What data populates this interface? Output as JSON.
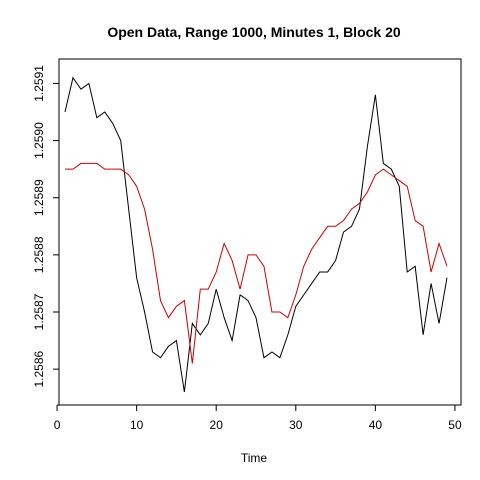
{
  "chart_data": {
    "type": "line",
    "title": "Open Data, Range 1000, Minutes 1, Block 20",
    "xlabel": "Time",
    "ylabel": "",
    "xlim": [
      1,
      49
    ],
    "ylim": [
      1.25856,
      1.25912
    ],
    "x_ticks": [
      0,
      10,
      20,
      30,
      40,
      50
    ],
    "y_ticks": [
      1.2586,
      1.2587,
      1.2588,
      1.2589,
      1.259,
      1.2591
    ],
    "y_tick_labels": [
      "1.2586",
      "1.2587",
      "1.2588",
      "1.2589",
      "1.2590",
      "1.2591"
    ],
    "grid": false,
    "legend": "none",
    "x": [
      1,
      2,
      3,
      4,
      5,
      6,
      7,
      8,
      9,
      10,
      11,
      12,
      13,
      14,
      15,
      16,
      17,
      18,
      19,
      20,
      21,
      22,
      23,
      24,
      25,
      26,
      27,
      28,
      29,
      30,
      31,
      32,
      33,
      34,
      35,
      36,
      37,
      38,
      39,
      40,
      41,
      42,
      43,
      44,
      45,
      46,
      47,
      48,
      49
    ],
    "series": [
      {
        "color": "#000000",
        "values": [
          1.25905,
          1.25911,
          1.25909,
          1.2591,
          1.25904,
          1.25905,
          1.25903,
          1.259,
          1.25888,
          1.25876,
          1.2587,
          1.25863,
          1.25862,
          1.25864,
          1.25865,
          1.25856,
          1.25868,
          1.25866,
          1.25868,
          1.25874,
          1.25869,
          1.25865,
          1.25873,
          1.25872,
          1.25869,
          1.25862,
          1.25863,
          1.25862,
          1.25866,
          1.25871,
          1.25873,
          1.25875,
          1.25877,
          1.25877,
          1.25879,
          1.25884,
          1.25885,
          1.25888,
          1.25899,
          1.25908,
          1.25896,
          1.25895,
          1.25892,
          1.25877,
          1.25878,
          1.25866,
          1.25875,
          1.25868,
          1.25876
        ]
      },
      {
        "color": "#cc0000",
        "values": [
          1.25895,
          1.25895,
          1.25896,
          1.25896,
          1.25896,
          1.25895,
          1.25895,
          1.25895,
          1.25894,
          1.25892,
          1.25888,
          1.25881,
          1.25872,
          1.25869,
          1.25871,
          1.25872,
          1.25861,
          1.25874,
          1.25874,
          1.25877,
          1.25882,
          1.25879,
          1.25874,
          1.2588,
          1.2588,
          1.25878,
          1.2587,
          1.2587,
          1.25869,
          1.25873,
          1.25878,
          1.25881,
          1.25883,
          1.25885,
          1.25885,
          1.25886,
          1.25888,
          1.25889,
          1.25891,
          1.25894,
          1.25895,
          1.25894,
          1.25893,
          1.25892,
          1.25886,
          1.25885,
          1.25877,
          1.25882,
          1.25878
        ]
      }
    ]
  }
}
